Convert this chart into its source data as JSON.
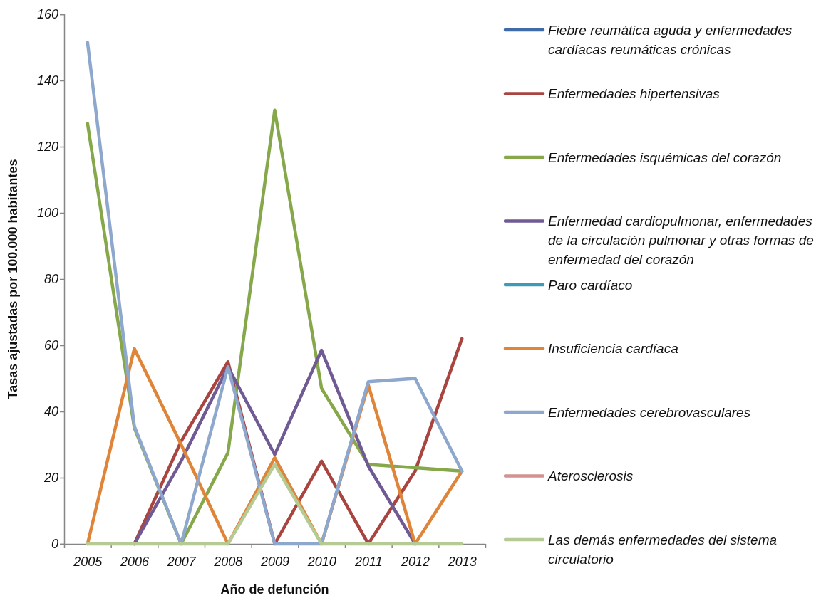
{
  "chart_data": {
    "type": "line",
    "xlabel": "Año de defunción",
    "ylabel": "Tasas ajustadas por 100.000 habitantes",
    "categories": [
      "2005",
      "2006",
      "2007",
      "2008",
      "2009",
      "2010",
      "2011",
      "2012",
      "2013"
    ],
    "ylim": [
      0,
      160
    ],
    "yticks": [
      0,
      20,
      40,
      60,
      80,
      100,
      120,
      140,
      160
    ],
    "legend": "right",
    "series": [
      {
        "name": "Fiebre reumática aguda y enfermedades cardíacas reumáticas crónicas",
        "color": "#3f6ca8",
        "values": [
          null,
          null,
          null,
          null,
          null,
          null,
          null,
          null,
          null
        ]
      },
      {
        "name": "Enfermedades hipertensivas",
        "color": "#a94541",
        "values": [
          null,
          0,
          31,
          55,
          0,
          25,
          0,
          22,
          62
        ]
      },
      {
        "name": "Enfermedades isquémicas del corazón",
        "color": "#86a84a",
        "values": [
          127,
          35,
          0,
          27.5,
          131,
          47,
          24,
          23,
          22
        ]
      },
      {
        "name": "Enfermedad cardiopulmonar, enfermedades de la circulación pulmonar y otras formas de enfermedad del corazón",
        "color": "#6f5a94",
        "values": [
          null,
          0,
          25,
          53.5,
          27,
          58.5,
          23.5,
          0,
          null
        ]
      },
      {
        "name": "Paro cardíaco",
        "color": "#3f9ab3",
        "values": [
          null,
          null,
          null,
          null,
          null,
          null,
          null,
          null,
          null
        ]
      },
      {
        "name": "Insuficiencia cardíaca",
        "color": "#df8539",
        "values": [
          0,
          59,
          30,
          0,
          26,
          0,
          48,
          0,
          22
        ]
      },
      {
        "name": "Enfermedades cerebrovasculares",
        "color": "#8ea7cd",
        "values": [
          151.5,
          35.5,
          0,
          53.5,
          0,
          0,
          49,
          50,
          22
        ]
      },
      {
        "name": "Aterosclerosis",
        "color": "#d39290",
        "values": [
          null,
          null,
          null,
          null,
          null,
          null,
          null,
          null,
          null
        ]
      },
      {
        "name": "Las demás enfermedades del sistema circulatorio",
        "color": "#b5cb93",
        "values": [
          0,
          0,
          0,
          0,
          24,
          0,
          0,
          0,
          0
        ]
      }
    ]
  }
}
